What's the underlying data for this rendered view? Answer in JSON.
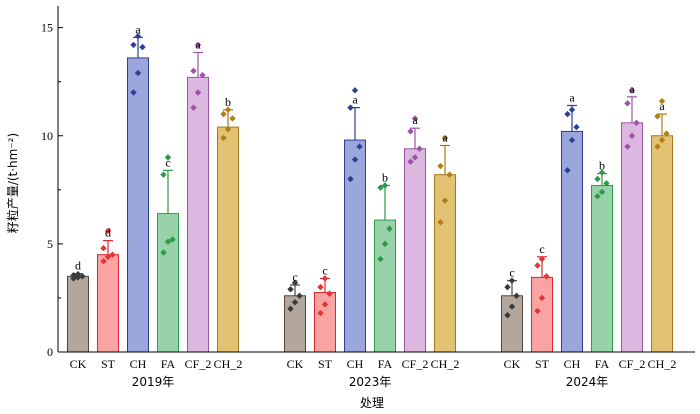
{
  "chart_data": {
    "type": "bar",
    "xlabel": "处理",
    "ylabel": "籽粒产量/(t·hm⁻²)",
    "ylim": [
      0,
      16
    ],
    "yticks": [
      0,
      5,
      10,
      15
    ],
    "grid": false,
    "categories": [
      "CK",
      "ST",
      "CH",
      "FA",
      "CF_2",
      "CH_2"
    ],
    "colors": {
      "CK": {
        "fill": "#b2a69d",
        "stroke": "#54453f",
        "point": "#3a3a3a"
      },
      "ST": {
        "fill": "#f9a3a3",
        "stroke": "#d9282e",
        "point": "#e23535"
      },
      "CH": {
        "fill": "#9aa6dc",
        "stroke": "#2b3f8f",
        "point": "#2f3f92"
      },
      "FA": {
        "fill": "#98d2a8",
        "stroke": "#2f9a4e",
        "point": "#2b9a4a"
      },
      "CF_2": {
        "fill": "#dcb7df",
        "stroke": "#9a58a2",
        "point": "#a050a8"
      },
      "CH_2": {
        "fill": "#e2c373",
        "stroke": "#a27a1d",
        "point": "#b07e12"
      }
    },
    "groups": [
      {
        "name": "2019年",
        "bars": [
          {
            "category": "CK",
            "value": 3.5,
            "error": 0.12,
            "sig": "d",
            "points": [
              3.4,
              3.45,
              3.5,
              3.55,
              3.6
            ]
          },
          {
            "category": "ST",
            "value": 4.5,
            "error": 0.65,
            "sig": "d",
            "points": [
              4.2,
              4.4,
              4.5,
              4.8,
              5.6
            ]
          },
          {
            "category": "CH",
            "value": 13.6,
            "error": 0.95,
            "sig": "a",
            "points": [
              12.0,
              12.9,
              14.1,
              14.2,
              14.6
            ]
          },
          {
            "category": "FA",
            "value": 6.4,
            "error": 2.0,
            "sig": "c",
            "points": [
              4.6,
              5.1,
              5.2,
              8.2,
              9.0
            ]
          },
          {
            "category": "CF_2",
            "value": 12.7,
            "error": 1.15,
            "sig": "a",
            "points": [
              11.3,
              12.0,
              12.8,
              13.0,
              14.2
            ]
          },
          {
            "category": "CH_2",
            "value": 10.4,
            "error": 0.8,
            "sig": "b",
            "points": [
              9.9,
              10.3,
              10.8,
              11.0,
              11.2
            ]
          }
        ]
      },
      {
        "name": "2023年",
        "bars": [
          {
            "category": "CK",
            "value": 2.6,
            "error": 0.5,
            "sig": "c",
            "points": [
              2.0,
              2.3,
              2.6,
              2.9,
              3.2
            ]
          },
          {
            "category": "ST",
            "value": 2.75,
            "error": 0.65,
            "sig": "c",
            "points": [
              1.8,
              2.2,
              2.7,
              3.0,
              3.4
            ]
          },
          {
            "category": "CH",
            "value": 9.8,
            "error": 1.5,
            "sig": "a",
            "points": [
              8.0,
              8.9,
              9.5,
              11.3,
              12.1
            ]
          },
          {
            "category": "FA",
            "value": 6.1,
            "error": 1.6,
            "sig": "b",
            "points": [
              4.3,
              5.0,
              5.7,
              7.6,
              7.7
            ]
          },
          {
            "category": "CF_2",
            "value": 9.4,
            "error": 0.95,
            "sig": "a",
            "points": [
              8.8,
              9.0,
              9.4,
              10.2,
              10.8
            ]
          },
          {
            "category": "CH_2",
            "value": 8.2,
            "error": 1.35,
            "sig": "a",
            "points": [
              6.0,
              7.0,
              8.2,
              8.6,
              9.9
            ]
          }
        ]
      },
      {
        "name": "2024年",
        "bars": [
          {
            "category": "CK",
            "value": 2.6,
            "error": 0.7,
            "sig": "c",
            "points": [
              1.7,
              2.1,
              2.6,
              3.0,
              3.3
            ]
          },
          {
            "category": "ST",
            "value": 3.45,
            "error": 0.95,
            "sig": "c",
            "points": [
              1.9,
              2.5,
              3.5,
              4.0,
              4.3
            ]
          },
          {
            "category": "CH",
            "value": 10.2,
            "error": 1.2,
            "sig": "a",
            "points": [
              8.4,
              9.8,
              10.4,
              11.0,
              11.2
            ]
          },
          {
            "category": "FA",
            "value": 7.7,
            "error": 0.55,
            "sig": "b",
            "points": [
              7.2,
              7.4,
              7.8,
              8.0,
              8.3
            ]
          },
          {
            "category": "CF_2",
            "value": 10.6,
            "error": 1.2,
            "sig": "a",
            "points": [
              9.5,
              10.0,
              10.6,
              11.5,
              12.1
            ]
          },
          {
            "category": "CH_2",
            "value": 10.0,
            "error": 1.0,
            "sig": "a",
            "points": [
              9.5,
              9.8,
              10.1,
              10.9,
              11.6
            ]
          }
        ]
      }
    ]
  }
}
